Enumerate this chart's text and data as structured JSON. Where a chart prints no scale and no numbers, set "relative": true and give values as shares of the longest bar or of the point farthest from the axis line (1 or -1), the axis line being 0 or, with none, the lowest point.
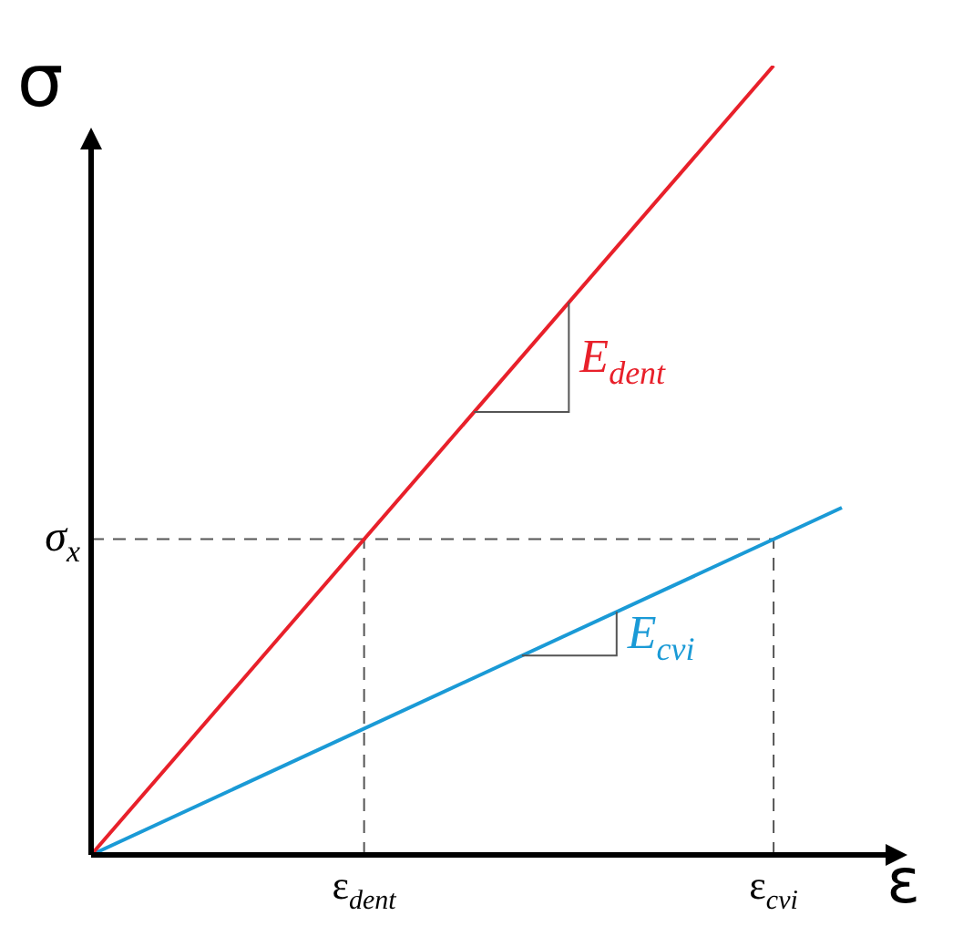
{
  "chart_data": {
    "type": "line",
    "relative": true,
    "xlabel": "ε",
    "ylabel": "σ",
    "categories": [
      null,
      null,
      null,
      null,
      "ε$_{dent}$",
      null,
      null,
      null,
      null,
      null,
      "ε$_{cvi}$",
      null
    ],
    "series": [
      {
        "color": "#e8202a",
        "values": [
          0,
          null,
          null,
          null,
          null,
          null,
          null,
          null,
          null,
          null,
          1,
          null
        ]
      },
      {
        "color": "#1a9ad6",
        "values": [
          0,
          null,
          null,
          null,
          null,
          null,
          null,
          null,
          null,
          null,
          null,
          0.44
        ]
      }
    ],
    "ref_lines": [
      {
        "axis": "y",
        "value": 0.4,
        "label": "σ$_{x}$",
        "color": "#555555",
        "line_style": "dashed"
      },
      {
        "axis": "x",
        "value": "ε$_{dent}$",
        "color": "#555555",
        "line_style": "dashed"
      },
      {
        "axis": "x",
        "value": "ε$_{cvi}$",
        "color": "#555555",
        "line_style": "dashed"
      }
    ],
    "annotations": [
      "E$_{dent}$",
      "E$_{cvi}$"
    ],
    "line_style": "solid"
  }
}
